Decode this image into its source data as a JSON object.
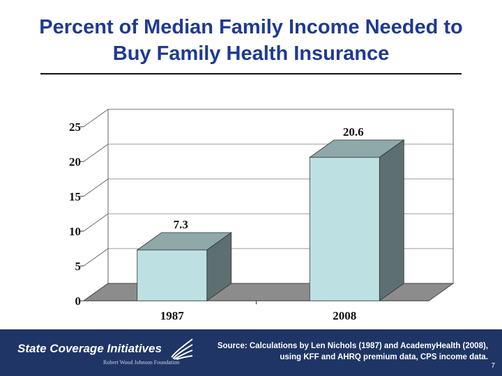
{
  "title": {
    "line1": "Percent of Median Family Income Needed to",
    "line2": "Buy Family Health Insurance"
  },
  "chart_data": {
    "type": "bar",
    "categories": [
      "1987",
      "2008"
    ],
    "values": [
      7.3,
      20.6
    ],
    "ylim": [
      0,
      25
    ],
    "yticks": [
      "0",
      "5",
      "10",
      "15",
      "20",
      "25"
    ],
    "grid": true,
    "style": "3d",
    "colors": {
      "front": "#bde0e3",
      "top": "#8fa8aa",
      "side": "#5d6f70",
      "floor": "#8c8c8c"
    }
  },
  "footer": {
    "logo_text": "State Coverage Initiatives",
    "logo_sub": "Robert Wood Johnson Foundation",
    "source_line1": "Source: Calculations by Len Nichols (1987) and AcademyHealth (2008),",
    "source_line2": "using KFF and AHRQ premium data, CPS income data.",
    "page_number": "7"
  }
}
